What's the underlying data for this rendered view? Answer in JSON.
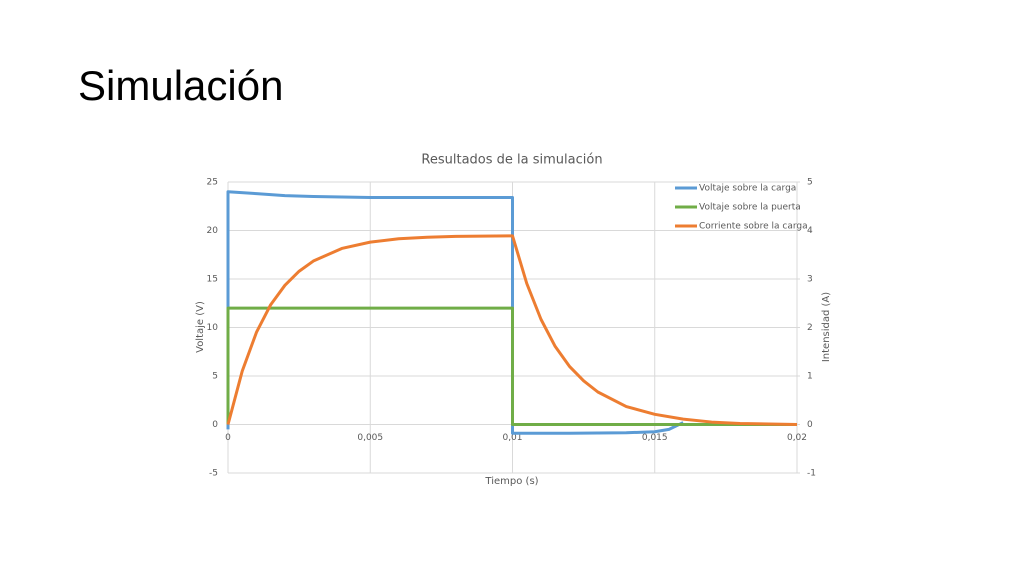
{
  "slide_title": "Simulación",
  "chart_data": {
    "type": "line",
    "title": "Resultados de la simulación",
    "x_label": "Tiempo (s)",
    "y_label": "Voltaje (V)",
    "y2_label": "Intensidad (A)",
    "xlim": [
      0,
      0.02
    ],
    "xticks": [
      0,
      {
        "value": 0.005,
        "label": "0,005"
      },
      {
        "value": 0.01,
        "label": "0,01"
      },
      {
        "value": 0.015,
        "label": "0,015"
      },
      {
        "value": 0.02,
        "label": "0,02"
      }
    ],
    "ylim": [
      -5,
      25
    ],
    "yticks": [
      -5,
      0,
      5,
      10,
      15,
      20,
      25
    ],
    "y2lim": [
      -1,
      5
    ],
    "y2ticks": [
      -1,
      0,
      1,
      2,
      3,
      4,
      5
    ],
    "grid": true,
    "legend": "top-right",
    "series": [
      {
        "name": "Voltaje sobre la carga",
        "color": "#5b9bd5",
        "x": [
          0,
          0,
          0.001,
          0.002,
          0.003,
          0.005,
          0.007,
          0.01,
          0.01,
          0.012,
          0.014,
          0.015,
          0.0155,
          0.016
        ],
        "values": [
          -0.5,
          24,
          23.8,
          23.6,
          23.5,
          23.4,
          23.4,
          23.4,
          -0.9,
          -0.9,
          -0.85,
          -0.75,
          -0.5,
          0.2
        ]
      },
      {
        "name": "Voltaje sobre la puerta",
        "color": "#70ad47",
        "x": [
          0,
          0,
          0.01,
          0.01,
          0.02
        ],
        "values": [
          0,
          12,
          12,
          0,
          0
        ]
      },
      {
        "name": "Corriente sobre la carga",
        "color": "#ed7d31",
        "axis": "y2",
        "x": [
          0,
          0.0005,
          0.001,
          0.0015,
          0.002,
          0.0025,
          0.003,
          0.004,
          0.005,
          0.006,
          0.007,
          0.008,
          0.01,
          0.0105,
          0.011,
          0.0115,
          0.012,
          0.0125,
          0.013,
          0.014,
          0.015,
          0.016,
          0.017,
          0.018,
          0.02
        ],
        "values": [
          0,
          1.1,
          1.9,
          2.47,
          2.87,
          3.16,
          3.37,
          3.63,
          3.76,
          3.83,
          3.86,
          3.88,
          3.89,
          2.91,
          2.17,
          1.61,
          1.2,
          0.9,
          0.67,
          0.37,
          0.21,
          0.11,
          0.05,
          0.02,
          0
        ]
      }
    ]
  }
}
